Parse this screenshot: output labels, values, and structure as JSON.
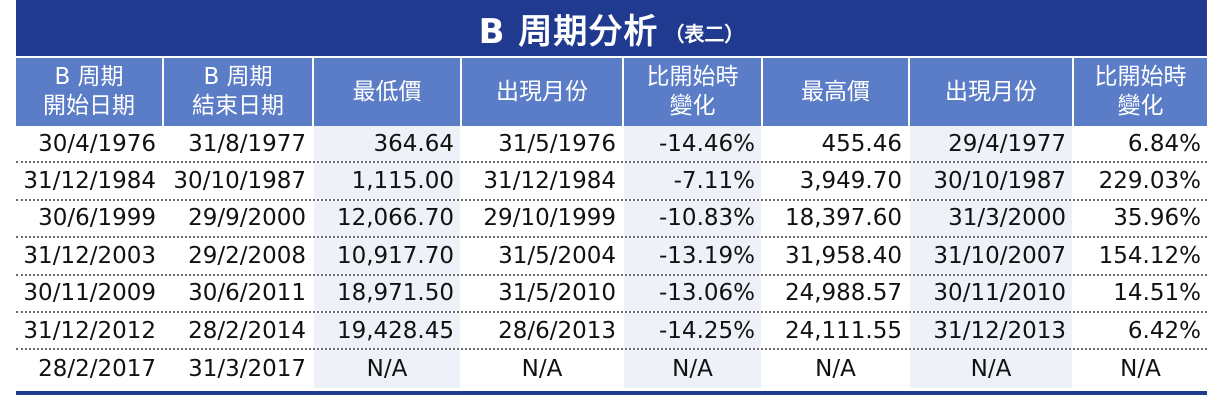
{
  "title": {
    "main": "B 周期分析",
    "sub": "（表二）"
  },
  "headers": [
    "B 周期\n開始日期",
    "B 周期\n結束日期",
    "最低價",
    "出現月份",
    "比開始時\n變化",
    "最高價",
    "出現月份",
    "比開始時\n變化"
  ],
  "rows": [
    [
      "30/4/1976",
      "31/8/1977",
      "364.64",
      "31/5/1976",
      "-14.46%",
      "455.46",
      "29/4/1977",
      "6.84%"
    ],
    [
      "31/12/1984",
      "30/10/1987",
      "1,115.00",
      "31/12/1984",
      "-7.11%",
      "3,949.70",
      "30/10/1987",
      "229.03%"
    ],
    [
      "30/6/1999",
      "29/9/2000",
      "12,066.70",
      "29/10/1999",
      "-10.83%",
      "18,397.60",
      "31/3/2000",
      "35.96%"
    ],
    [
      "31/12/2003",
      "29/2/2008",
      "10,917.70",
      "31/5/2004",
      "-13.19%",
      "31,958.40",
      "31/10/2007",
      "154.12%"
    ],
    [
      "30/11/2009",
      "30/6/2011",
      "18,971.50",
      "31/5/2010",
      "-13.06%",
      "24,988.57",
      "30/11/2010",
      "14.51%"
    ],
    [
      "31/12/2012",
      "28/2/2014",
      "19,428.45",
      "28/6/2013",
      "-14.25%",
      "24,111.55",
      "31/12/2013",
      "6.42%"
    ],
    [
      "28/2/2017",
      "31/3/2017",
      "N/A",
      "N/A",
      "N/A",
      "N/A",
      "N/A",
      "N/A"
    ]
  ],
  "colors": {
    "title_bg": "#1f3a8f",
    "header_bg": "#5b7cc6",
    "alt_column_bg": "#eef1f8"
  }
}
